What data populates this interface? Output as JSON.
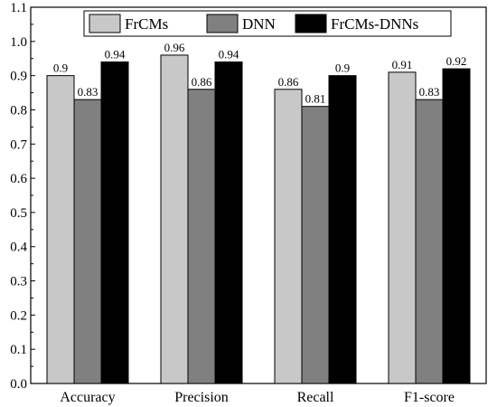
{
  "chart_data": {
    "type": "bar",
    "title": "",
    "xlabel": "",
    "ylabel": "",
    "categories": [
      "Accuracy",
      "Precision",
      "Recall",
      "F1-score"
    ],
    "series": [
      {
        "name": "FrCMs",
        "color": "#c8c8c8",
        "values": [
          0.9,
          0.96,
          0.86,
          0.91
        ],
        "labels": [
          "0.9",
          "0.96",
          "0.86",
          "0.91"
        ]
      },
      {
        "name": "DNN",
        "color": "#808080",
        "values": [
          0.83,
          0.86,
          0.81,
          0.83
        ],
        "labels": [
          "0.83",
          "0.86",
          "0.81",
          "0.83"
        ]
      },
      {
        "name": "FrCMs-DNNs",
        "color": "#000000",
        "values": [
          0.94,
          0.94,
          0.9,
          0.92
        ],
        "labels": [
          "0.94",
          "0.94",
          "0.9",
          "0.92"
        ]
      }
    ],
    "ylim": [
      0.0,
      1.1
    ],
    "yticks": [
      "0.0",
      "0.1",
      "0.2",
      "0.3",
      "0.4",
      "0.5",
      "0.6",
      "0.7",
      "0.8",
      "0.9",
      "1.0",
      "1.1"
    ],
    "grid": false,
    "legend_position": "top-center"
  }
}
